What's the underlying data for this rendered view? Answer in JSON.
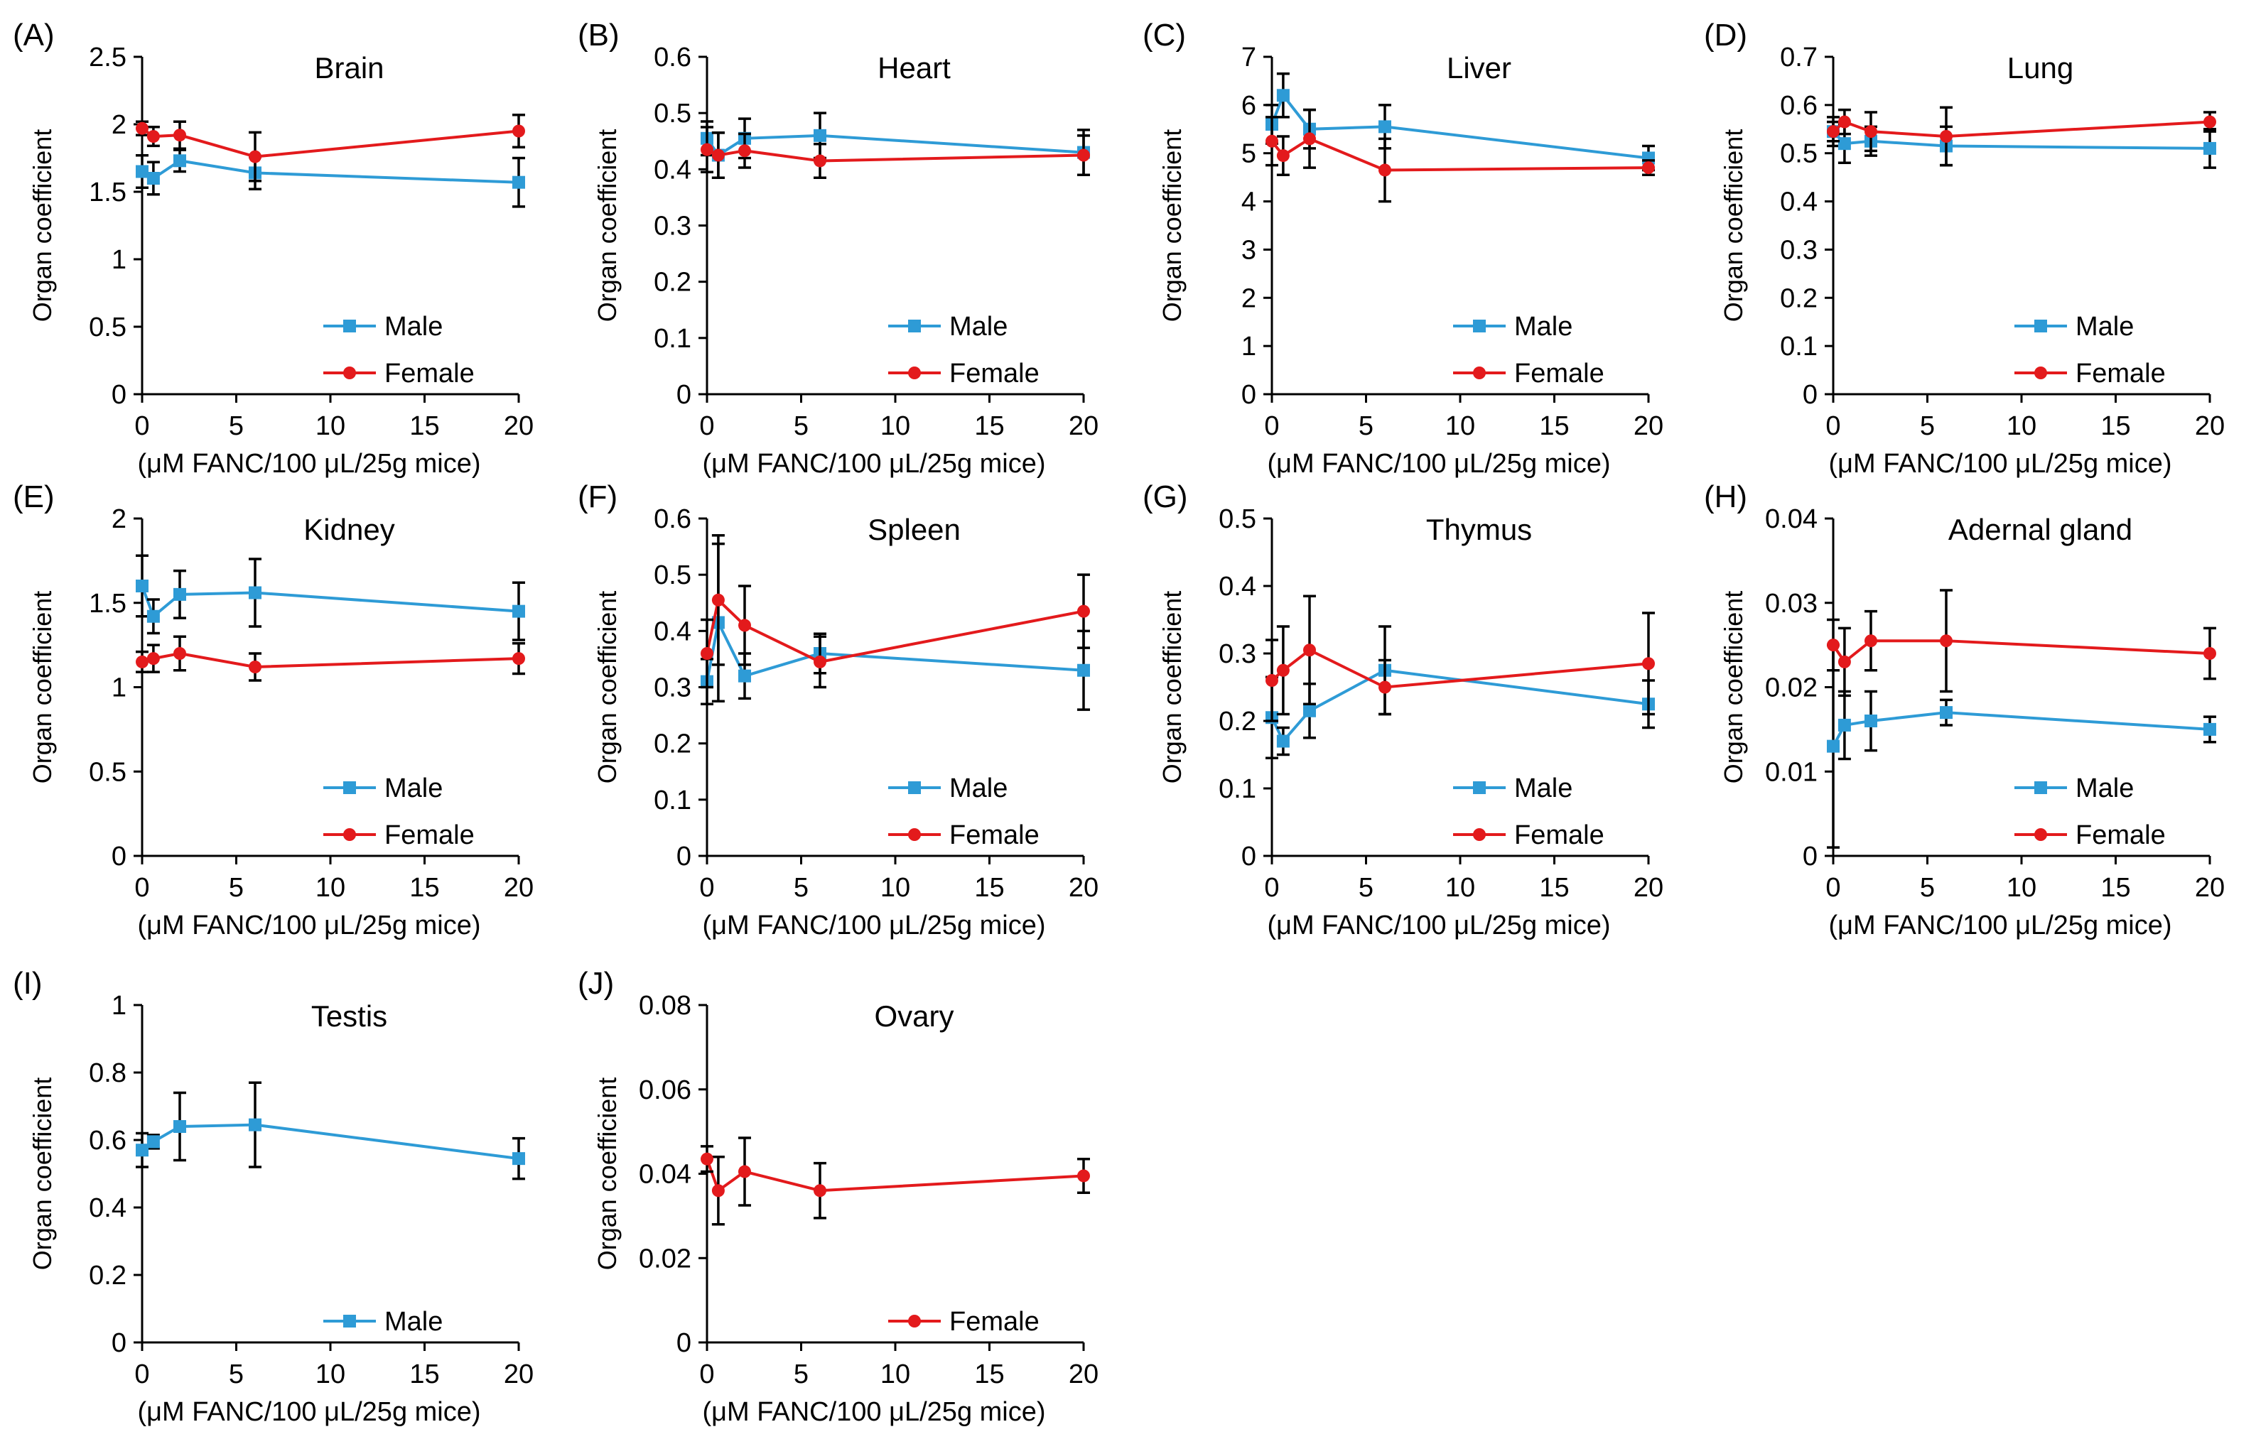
{
  "figure": {
    "ylabel": "Organ coefficient",
    "xlabel": "(μM FANC/100 μL/25g mice)",
    "colors": {
      "male": "#2e9bd6",
      "female": "#e31a1c",
      "axis": "#000000",
      "errorbar": "#000000"
    }
  },
  "chart_data": [
    {
      "panel": "(A)",
      "title": "Brain",
      "type": "line",
      "x": [
        0,
        0.6,
        2,
        6,
        20
      ],
      "xlim": [
        0,
        20
      ],
      "xticks": [
        "0",
        "5",
        "10",
        "15",
        "20"
      ],
      "ylim": [
        0,
        2.5
      ],
      "yticks": [
        "0",
        "0.5",
        "1",
        "1.5",
        "2",
        "2.5"
      ],
      "series": [
        {
          "name": "Male",
          "values": [
            1.65,
            1.6,
            1.73,
            1.64,
            1.57
          ],
          "errors": [
            0.12,
            0.12,
            0.08,
            0.12,
            0.18
          ]
        },
        {
          "name": "Female",
          "values": [
            1.97,
            1.91,
            1.92,
            1.76,
            1.95
          ],
          "errors": [
            0.05,
            0.07,
            0.1,
            0.18,
            0.12
          ]
        }
      ]
    },
    {
      "panel": "(B)",
      "title": "Heart",
      "type": "line",
      "x": [
        0,
        0.6,
        2,
        6,
        20
      ],
      "xlim": [
        0,
        20
      ],
      "xticks": [
        "0",
        "5",
        "10",
        "15",
        "20"
      ],
      "ylim": [
        0,
        0.6
      ],
      "yticks": [
        "0",
        "0.1",
        "0.2",
        "0.3",
        "0.4",
        "0.5",
        "0.6"
      ],
      "series": [
        {
          "name": "Male",
          "values": [
            0.455,
            0.425,
            0.455,
            0.46,
            0.43
          ],
          "errors": [
            0.03,
            0.04,
            0.035,
            0.04,
            0.04
          ]
        },
        {
          "name": "Female",
          "values": [
            0.435,
            0.425,
            0.433,
            0.415,
            0.425
          ],
          "errors": [
            0.04,
            0.04,
            0.03,
            0.03,
            0.035
          ]
        }
      ]
    },
    {
      "panel": "(C)",
      "title": "Liver",
      "type": "line",
      "x": [
        0,
        0.6,
        2,
        6,
        20
      ],
      "xlim": [
        0,
        20
      ],
      "xticks": [
        "0",
        "5",
        "10",
        "15",
        "20"
      ],
      "ylim": [
        0,
        7
      ],
      "yticks": [
        "0",
        "1",
        "2",
        "3",
        "4",
        "5",
        "6",
        "7"
      ],
      "series": [
        {
          "name": "Male",
          "values": [
            5.6,
            6.2,
            5.5,
            5.55,
            4.9
          ],
          "errors": [
            0.4,
            0.45,
            0.4,
            0.45,
            0.25
          ]
        },
        {
          "name": "Female",
          "values": [
            5.25,
            4.95,
            5.3,
            4.65,
            4.7
          ],
          "errors": [
            0.5,
            0.4,
            0.6,
            0.65,
            0.15
          ]
        }
      ]
    },
    {
      "panel": "(D)",
      "title": "Lung",
      "type": "line",
      "x": [
        0,
        0.6,
        2,
        6,
        20
      ],
      "xlim": [
        0,
        20
      ],
      "xticks": [
        "0",
        "5",
        "10",
        "15",
        "20"
      ],
      "ylim": [
        0,
        0.7
      ],
      "yticks": [
        "0",
        "0.1",
        "0.2",
        "0.3",
        "0.4",
        "0.5",
        "0.6",
        "0.7"
      ],
      "series": [
        {
          "name": "Male",
          "values": [
            0.545,
            0.52,
            0.525,
            0.515,
            0.51
          ],
          "errors": [
            0.03,
            0.04,
            0.03,
            0.04,
            0.04
          ]
        },
        {
          "name": "Female",
          "values": [
            0.545,
            0.565,
            0.545,
            0.535,
            0.565
          ],
          "errors": [
            0.02,
            0.025,
            0.04,
            0.06,
            0.02
          ]
        }
      ]
    },
    {
      "panel": "(E)",
      "title": "Kidney",
      "type": "line",
      "x": [
        0,
        0.6,
        2,
        6,
        20
      ],
      "xlim": [
        0,
        20
      ],
      "xticks": [
        "0",
        "5",
        "10",
        "15",
        "20"
      ],
      "ylim": [
        0,
        2
      ],
      "yticks": [
        "0",
        "0.5",
        "1",
        "1.5",
        "2"
      ],
      "series": [
        {
          "name": "Male",
          "values": [
            1.6,
            1.42,
            1.55,
            1.56,
            1.45
          ],
          "errors": [
            0.18,
            0.1,
            0.14,
            0.2,
            0.17
          ]
        },
        {
          "name": "Female",
          "values": [
            1.15,
            1.17,
            1.2,
            1.12,
            1.17
          ],
          "errors": [
            0.06,
            0.08,
            0.1,
            0.08,
            0.09
          ]
        }
      ]
    },
    {
      "panel": "(F)",
      "title": "Spleen",
      "type": "line",
      "x": [
        0,
        0.6,
        2,
        6,
        20
      ],
      "xlim": [
        0,
        20
      ],
      "xticks": [
        "0",
        "5",
        "10",
        "15",
        "20"
      ],
      "ylim": [
        0,
        0.6
      ],
      "yticks": [
        "0",
        "0.1",
        "0.2",
        "0.3",
        "0.4",
        "0.5",
        "0.6"
      ],
      "series": [
        {
          "name": "Male",
          "values": [
            0.31,
            0.415,
            0.32,
            0.36,
            0.33
          ],
          "errors": [
            0.04,
            0.14,
            0.04,
            0.035,
            0.07
          ]
        },
        {
          "name": "Female",
          "values": [
            0.36,
            0.455,
            0.41,
            0.345,
            0.435
          ],
          "errors": [
            0.06,
            0.115,
            0.07,
            0.045,
            0.065
          ]
        }
      ]
    },
    {
      "panel": "(G)",
      "title": "Thymus",
      "type": "line",
      "x": [
        0,
        0.6,
        2,
        6,
        20
      ],
      "xlim": [
        0,
        20
      ],
      "xticks": [
        "0",
        "5",
        "10",
        "15",
        "20"
      ],
      "ylim": [
        0,
        0.5
      ],
      "yticks": [
        "0",
        "0.1",
        "0.2",
        "0.3",
        "0.4",
        "0.5"
      ],
      "series": [
        {
          "name": "Male",
          "values": [
            0.205,
            0.17,
            0.215,
            0.275,
            0.225
          ],
          "errors": [
            0.06,
            0.02,
            0.04,
            0.065,
            0.035
          ]
        },
        {
          "name": "Female",
          "values": [
            0.26,
            0.275,
            0.305,
            0.25,
            0.285
          ],
          "errors": [
            0.06,
            0.065,
            0.08,
            0.04,
            0.075
          ]
        }
      ]
    },
    {
      "panel": "(H)",
      "title": "Adernal  gland",
      "type": "line",
      "x": [
        0,
        0.6,
        2,
        6,
        20
      ],
      "xlim": [
        0,
        20
      ],
      "xticks": [
        "0",
        "5",
        "10",
        "15",
        "20"
      ],
      "ylim": [
        0,
        0.04
      ],
      "yticks": [
        "0",
        "0.01",
        "0.02",
        "0.03",
        "0.04"
      ],
      "series": [
        {
          "name": "Male",
          "values": [
            0.013,
            0.0155,
            0.016,
            0.017,
            0.015
          ],
          "errors": [
            0.012,
            0.004,
            0.0035,
            0.0015,
            0.0015
          ]
        },
        {
          "name": "Female",
          "values": [
            0.025,
            0.023,
            0.0255,
            0.0255,
            0.024
          ],
          "errors": [
            0.003,
            0.004,
            0.0035,
            0.006,
            0.003
          ]
        }
      ]
    },
    {
      "panel": "(I)",
      "title": "Testis",
      "type": "line",
      "x": [
        0,
        0.6,
        2,
        6,
        20
      ],
      "xlim": [
        0,
        20
      ],
      "xticks": [
        "0",
        "5",
        "10",
        "15",
        "20"
      ],
      "ylim": [
        0,
        1
      ],
      "yticks": [
        "0",
        "0.2",
        "0.4",
        "0.6",
        "0.8",
        "1"
      ],
      "series": [
        {
          "name": "Male",
          "values": [
            0.57,
            0.595,
            0.64,
            0.645,
            0.545
          ],
          "errors": [
            0.05,
            0.02,
            0.1,
            0.125,
            0.06
          ]
        }
      ]
    },
    {
      "panel": "(J)",
      "title": "Ovary",
      "type": "line",
      "x": [
        0,
        0.6,
        2,
        6,
        20
      ],
      "xlim": [
        0,
        20
      ],
      "xticks": [
        "0",
        "5",
        "10",
        "15",
        "20"
      ],
      "ylim": [
        0,
        0.08
      ],
      "yticks": [
        "0",
        "0.02",
        "0.04",
        "0.06",
        "0.08"
      ],
      "series": [
        {
          "name": "Female",
          "values": [
            0.0435,
            0.036,
            0.0405,
            0.036,
            0.0395
          ],
          "errors": [
            0.003,
            0.008,
            0.008,
            0.0065,
            0.004
          ]
        }
      ]
    }
  ]
}
